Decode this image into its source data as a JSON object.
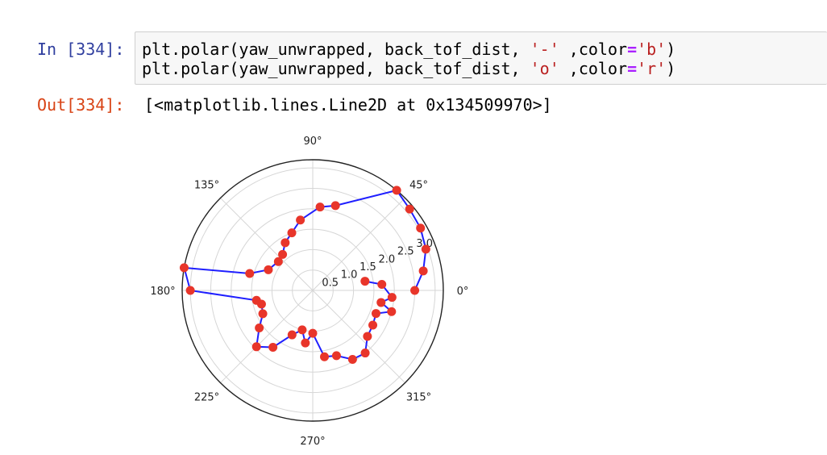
{
  "cell": {
    "in_prompt": "In [334]:",
    "out_prompt": "Out[334]:",
    "code_lines": [
      {
        "pre": "plt.polar(yaw_unwrapped, back_tof_dist, ",
        "s1": "'-'",
        "mid": " ,color",
        "op": "=",
        "s2": "'b'",
        "post": ")"
      },
      {
        "pre": "plt.polar(yaw_unwrapped, back_tof_dist, ",
        "s1": "'o'",
        "mid": " ,color",
        "op": "=",
        "s2": "'r'",
        "post": ")"
      }
    ],
    "output": "[<matplotlib.lines.Line2D at 0x134509970>]"
  },
  "colors": {
    "line": "#1f1fff",
    "marker": "#e8352a",
    "in_prompt": "#303f9f",
    "out_prompt": "#d84315"
  },
  "chart_data": {
    "type": "line",
    "projection": "polar",
    "angle_ticks": [
      "0°",
      "45°",
      "90°",
      "135°",
      "180°",
      "225°",
      "270°",
      "315°"
    ],
    "radial_ticks": [
      "0.5",
      "1.0",
      "1.5",
      "2.0",
      "2.5",
      "3.0"
    ],
    "rmax": 3.2,
    "grid": true,
    "series": [
      {
        "line_color": "b",
        "marker_color": "r",
        "points": [
          {
            "theta_deg": 0,
            "r": 2.5
          },
          {
            "theta_deg": 10,
            "r": 2.75
          },
          {
            "theta_deg": 20,
            "r": 2.95
          },
          {
            "theta_deg": 30,
            "r": 3.05
          },
          {
            "theta_deg": 40,
            "r": 3.1
          },
          {
            "theta_deg": 50,
            "r": 3.2
          },
          {
            "theta_deg": 75,
            "r": 2.15
          },
          {
            "theta_deg": 85,
            "r": 2.05
          },
          {
            "theta_deg": 100,
            "r": 1.75
          },
          {
            "theta_deg": 110,
            "r": 1.5
          },
          {
            "theta_deg": 120,
            "r": 1.35
          },
          {
            "theta_deg": 130,
            "r": 1.15
          },
          {
            "theta_deg": 140,
            "r": 1.1
          },
          {
            "theta_deg": 155,
            "r": 1.2
          },
          {
            "theta_deg": 165,
            "r": 1.6
          },
          {
            "theta_deg": 170,
            "r": 3.2
          },
          {
            "theta_deg": 180,
            "r": 3.0
          },
          {
            "theta_deg": 190,
            "r": 1.4
          },
          {
            "theta_deg": 195,
            "r": 1.3
          },
          {
            "theta_deg": 205,
            "r": 1.35
          },
          {
            "theta_deg": 215,
            "r": 1.6
          },
          {
            "theta_deg": 225,
            "r": 1.95
          },
          {
            "theta_deg": 235,
            "r": 1.7
          },
          {
            "theta_deg": 245,
            "r": 1.2
          },
          {
            "theta_deg": 255,
            "r": 1.0
          },
          {
            "theta_deg": 262,
            "r": 1.3
          },
          {
            "theta_deg": 270,
            "r": 1.05
          },
          {
            "theta_deg": 280,
            "r": 1.65
          },
          {
            "theta_deg": 290,
            "r": 1.7
          },
          {
            "theta_deg": 300,
            "r": 1.95
          },
          {
            "theta_deg": 310,
            "r": 2.0
          },
          {
            "theta_deg": 320,
            "r": 1.75
          },
          {
            "theta_deg": 330,
            "r": 1.7
          },
          {
            "theta_deg": 340,
            "r": 1.65
          },
          {
            "theta_deg": 345,
            "r": 2.0
          },
          {
            "theta_deg": 350,
            "r": 1.7
          },
          {
            "theta_deg": 355,
            "r": 1.95
          },
          {
            "theta_deg": 5,
            "r": 1.7
          },
          {
            "theta_deg": 10,
            "r": 1.3
          }
        ]
      }
    ]
  }
}
